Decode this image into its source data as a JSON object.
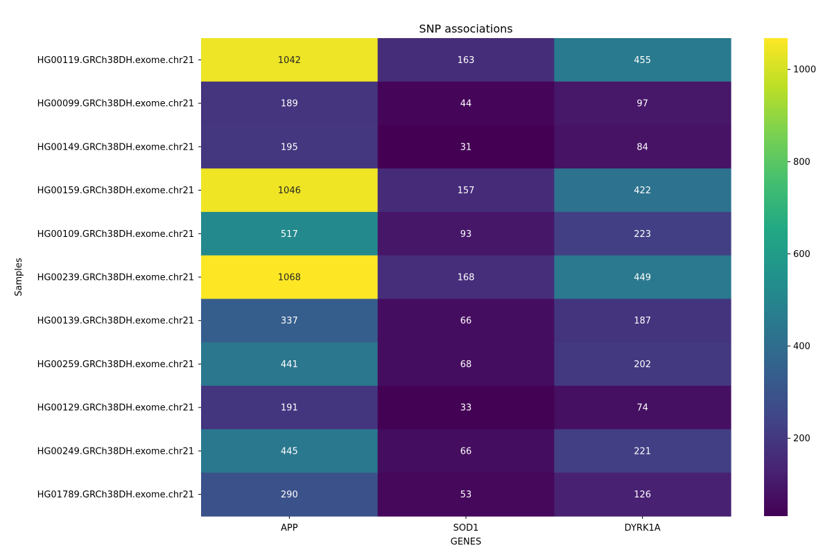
{
  "chart_data": {
    "type": "heatmap",
    "title": "SNP associations",
    "xlabel": "GENES",
    "ylabel": "Samples",
    "columns": [
      "APP",
      "SOD1",
      "DYRK1A"
    ],
    "rows": [
      "HG00119.GRCh38DH.exome.chr21",
      "HG00099.GRCh38DH.exome.chr21",
      "HG00149.GRCh38DH.exome.chr21",
      "HG00159.GRCh38DH.exome.chr21",
      "HG00109.GRCh38DH.exome.chr21",
      "HG00239.GRCh38DH.exome.chr21",
      "HG00139.GRCh38DH.exome.chr21",
      "HG00259.GRCh38DH.exome.chr21",
      "HG00129.GRCh38DH.exome.chr21",
      "HG00249.GRCh38DH.exome.chr21",
      "HG01789.GRCh38DH.exome.chr21"
    ],
    "values": [
      [
        1042,
        163,
        455
      ],
      [
        189,
        44,
        97
      ],
      [
        195,
        31,
        84
      ],
      [
        1046,
        157,
        422
      ],
      [
        517,
        93,
        223
      ],
      [
        1068,
        168,
        449
      ],
      [
        337,
        66,
        187
      ],
      [
        441,
        68,
        202
      ],
      [
        191,
        33,
        74
      ],
      [
        445,
        66,
        221
      ],
      [
        290,
        53,
        126
      ]
    ],
    "colormap": "viridis",
    "color_range": [
      31,
      1068
    ],
    "colorbar_ticks": [
      200,
      400,
      600,
      800,
      1000
    ],
    "annotation_colors": {
      "light": "#ffffff",
      "dark": "#262626"
    },
    "axis_color": "#000000"
  }
}
